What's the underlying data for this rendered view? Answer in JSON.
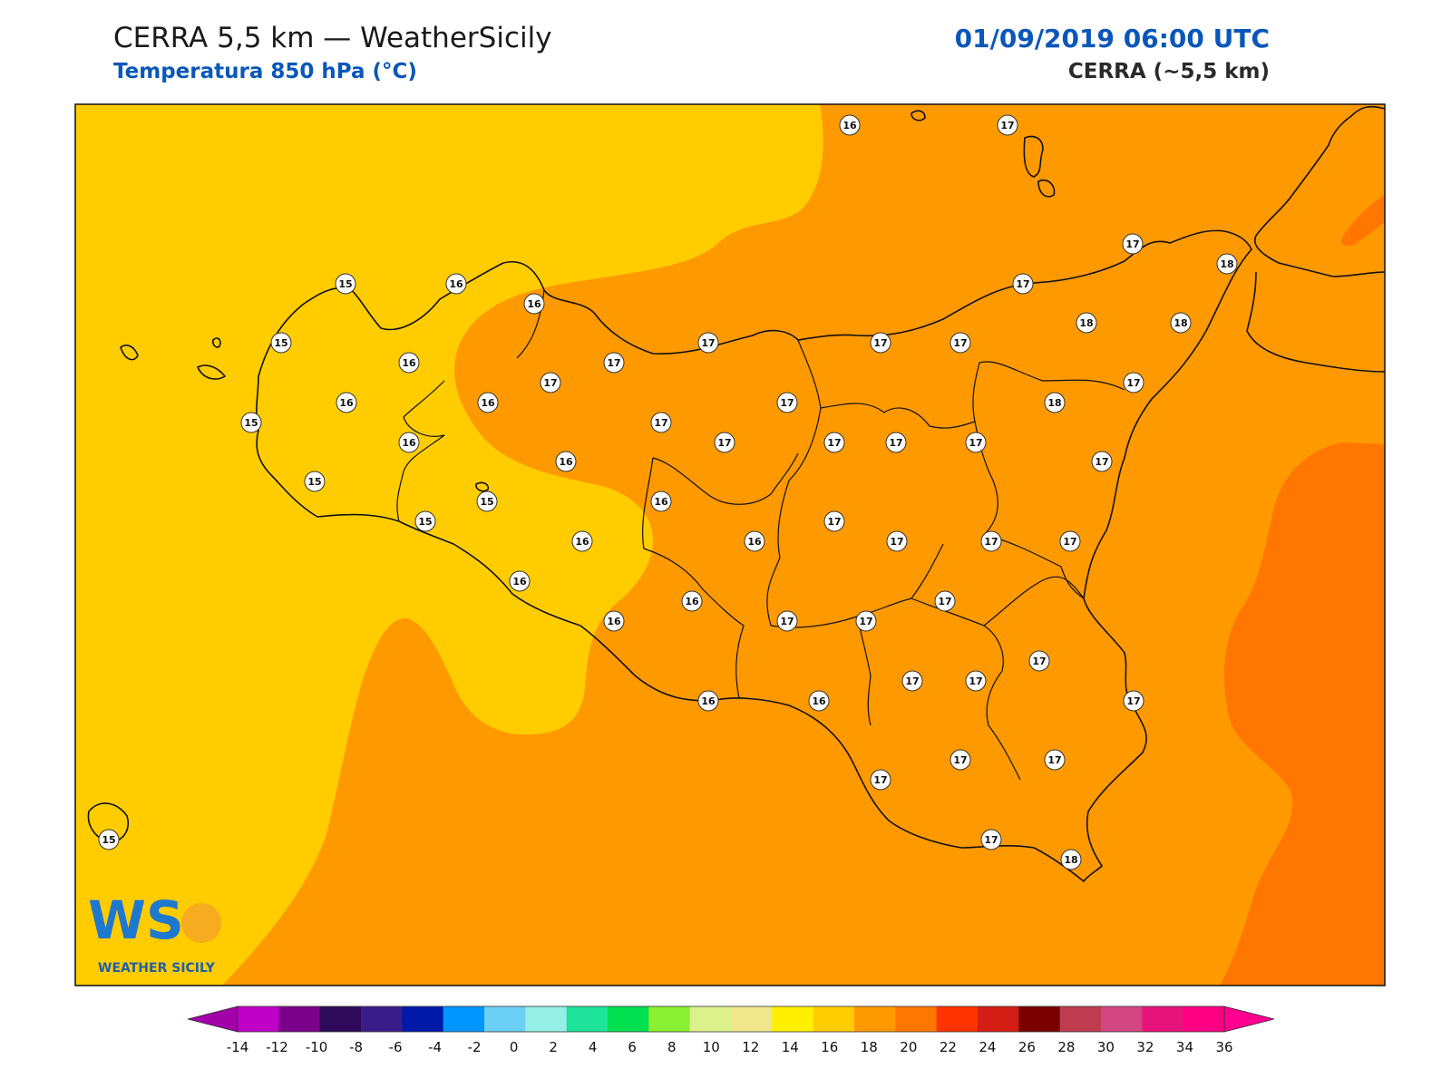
{
  "header": {
    "title": "CERRA 5,5 km — WeatherSicily",
    "subtitle": "Temperatura 850 hPa (°C)",
    "datetime": "01/09/2019 06:00 UTC",
    "model": "CERRA (~5,5 km)"
  },
  "logo": {
    "letters": "WS",
    "name": "WEATHER SICILY"
  },
  "colors": {
    "band_14_16": "#ffcc00",
    "band_16_18": "#ff9900",
    "band_18_20": "#ff7700",
    "coast": "#111111"
  },
  "colorbar": {
    "labels": [
      "-14",
      "-12",
      "-10",
      "-8",
      "-6",
      "-4",
      "-2",
      "0",
      "2",
      "4",
      "6",
      "8",
      "10",
      "12",
      "14",
      "16",
      "18",
      "20",
      "22",
      "24",
      "26",
      "28",
      "30",
      "32",
      "34",
      "36"
    ],
    "under_color": "#a200a8",
    "over_color": "#ff0090",
    "colors": [
      "#c000c8",
      "#7b008a",
      "#2e0a5a",
      "#3b1d8a",
      "#0019a8",
      "#0096ff",
      "#6cd0f5",
      "#96f0e6",
      "#1ee39a",
      "#00e050",
      "#8cf032",
      "#dcf08c",
      "#f0e68c",
      "#fff000",
      "#ffcc00",
      "#ff9900",
      "#ff7700",
      "#ff3300",
      "#d21e14",
      "#7a0000",
      "#be3c50",
      "#d24682",
      "#e6147a",
      "#ff0082"
    ]
  },
  "map_values": [
    {
      "label": "15"
    },
    {
      "label": "16"
    },
    {
      "label": "17"
    },
    {
      "label": "18"
    }
  ],
  "chart_data": {
    "type": "heatmap",
    "title": "Temperatura 850 hPa (°C)",
    "levels": [
      -14,
      -12,
      -10,
      -8,
      -6,
      -4,
      -2,
      0,
      2,
      4,
      6,
      8,
      10,
      12,
      14,
      16,
      18,
      20,
      22,
      24,
      26,
      28,
      30,
      32,
      34,
      36
    ],
    "station_values": [
      16,
      17,
      17,
      18,
      15,
      16,
      16,
      15,
      16,
      17,
      17,
      17,
      17,
      18,
      18,
      16,
      16,
      17,
      17,
      17,
      17,
      17,
      18,
      15,
      16,
      17,
      17,
      17,
      17,
      15,
      16,
      16,
      17,
      17,
      15,
      16,
      16,
      17,
      17,
      17,
      17,
      16,
      17,
      17,
      17,
      16,
      17,
      16,
      17,
      17,
      17,
      17,
      17,
      16,
      16,
      17,
      17,
      17,
      17,
      17,
      17,
      18,
      15
    ]
  }
}
